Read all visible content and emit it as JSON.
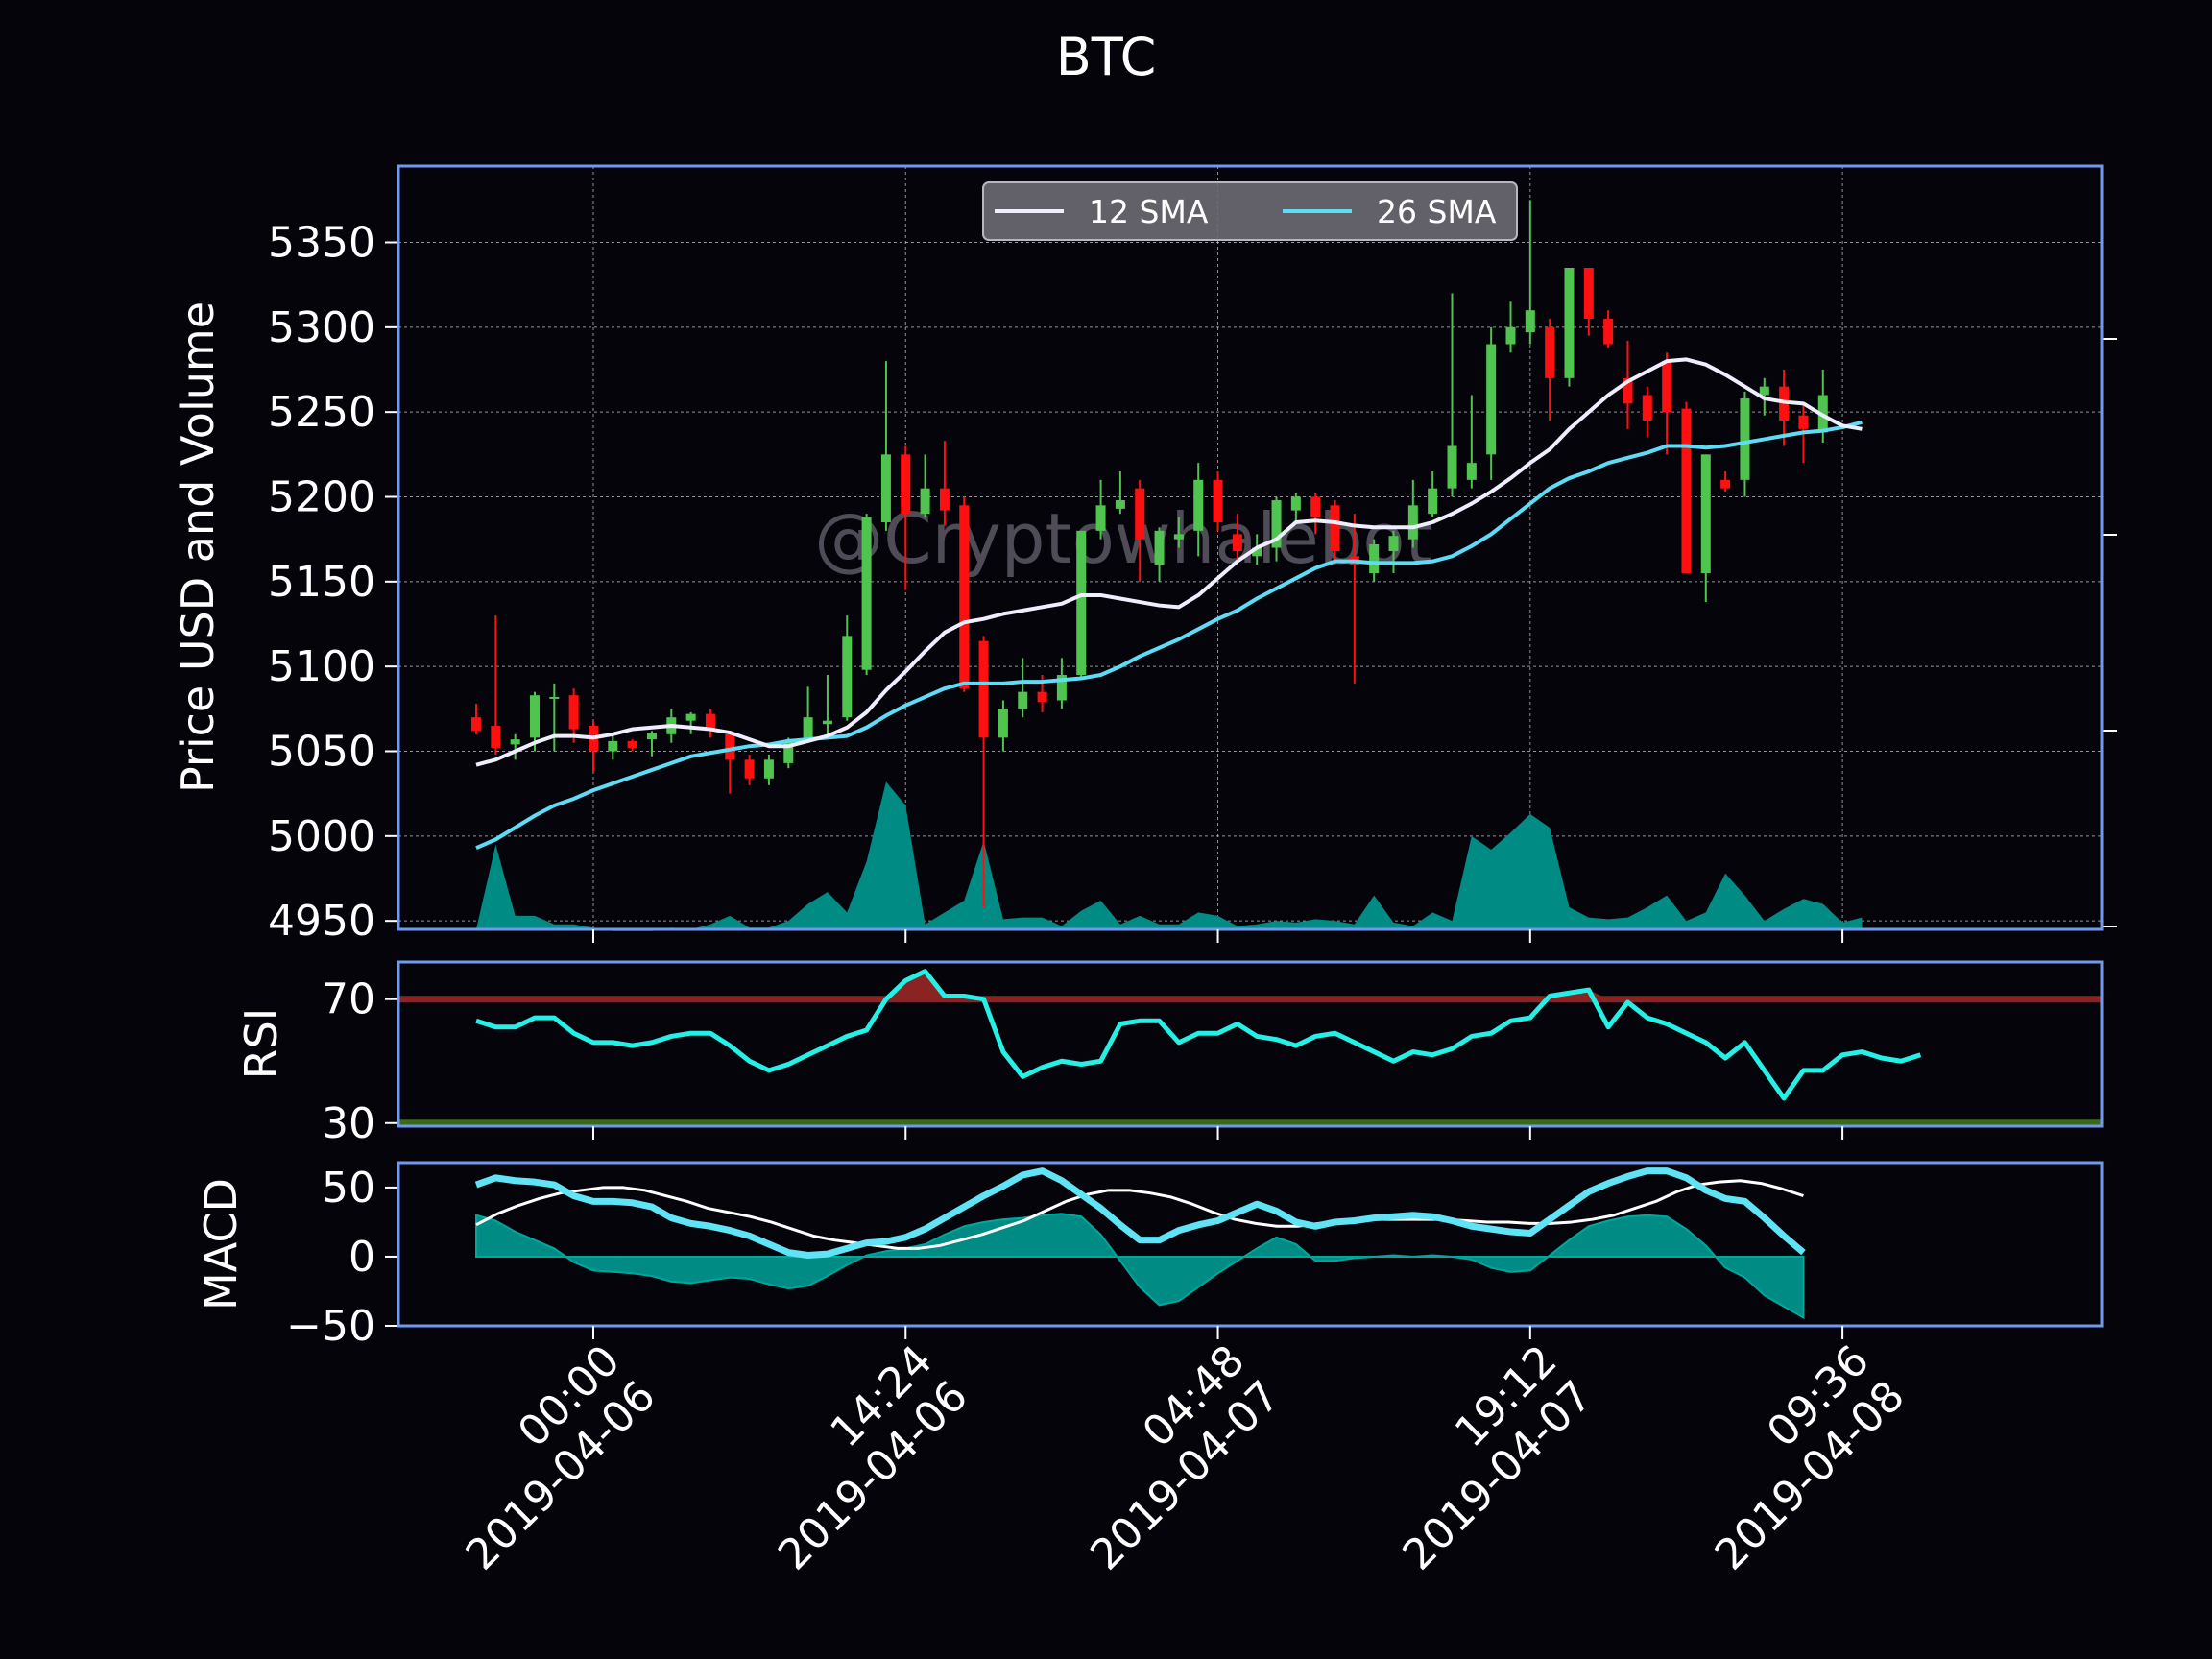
{
  "chart_data": {
    "type": "candlestick",
    "title": "BTC",
    "watermark": "@Cryptowhalebot",
    "x_tick_labels": [
      {
        "x": 6,
        "time": "00:00",
        "date": "2019-04-06"
      },
      {
        "x": 22,
        "time": "14:24",
        "date": "2019-04-06"
      },
      {
        "x": 38,
        "time": "04:48",
        "date": "2019-04-07"
      },
      {
        "x": 54,
        "time": "19:12",
        "date": "2019-04-07"
      },
      {
        "x": 70,
        "time": "09:36",
        "date": "2019-04-08"
      }
    ],
    "colors": {
      "background": "#05040b",
      "frame": "#6f9af0",
      "up": "#4fc44f",
      "down": "#ff1010",
      "sma12": "#eeeeff",
      "sma26": "#5fdcf5",
      "volume": "#008b84",
      "rsi_line": "#25f0e6",
      "rsi_over": "#8c2323",
      "rsi_under": "#3a6a16",
      "macd_line": "#5fe3f5",
      "signal_line": "#ffffff",
      "hist": "#008b84"
    },
    "price_panel": {
      "ylabel": "Price USD and Volume",
      "ylim": [
        4945,
        5395
      ],
      "yticks": [
        4950,
        5000,
        5050,
        5100,
        5150,
        5200,
        5250,
        5300,
        5350
      ],
      "legend": [
        {
          "label": "12 SMA",
          "color": "#eeeeff"
        },
        {
          "label": "26 SMA",
          "color": "#5fdcf5"
        }
      ],
      "candles": [
        [
          5070,
          5078,
          5060,
          5062
        ],
        [
          5065,
          5130,
          5048,
          5052
        ],
        [
          5054,
          5060,
          5045,
          5057
        ],
        [
          5058,
          5085,
          5050,
          5083
        ],
        [
          5082,
          5090,
          5050,
          5082
        ],
        [
          5083,
          5087,
          5055,
          5063
        ],
        [
          5065,
          5068,
          5038,
          5050
        ],
        [
          5050,
          5060,
          5045,
          5056
        ],
        [
          5056,
          5057,
          5050,
          5052
        ],
        [
          5057,
          5062,
          5047,
          5061
        ],
        [
          5060,
          5075,
          5055,
          5070
        ],
        [
          5068,
          5073,
          5060,
          5072
        ],
        [
          5072,
          5075,
          5058,
          5062
        ],
        [
          5060,
          5062,
          5025,
          5045
        ],
        [
          5045,
          5048,
          5030,
          5034
        ],
        [
          5034,
          5048,
          5030,
          5045
        ],
        [
          5043,
          5058,
          5040,
          5056
        ],
        [
          5057,
          5088,
          5055,
          5070
        ],
        [
          5066,
          5095,
          5060,
          5068
        ],
        [
          5070,
          5130,
          5068,
          5118
        ],
        [
          5098,
          5190,
          5095,
          5188
        ],
        [
          5185,
          5280,
          5180,
          5225
        ],
        [
          5225,
          5230,
          5145,
          5190
        ],
        [
          5190,
          5225,
          5188,
          5205
        ],
        [
          5205,
          5233,
          5183,
          5192
        ],
        [
          5195,
          5200,
          5085,
          5087
        ],
        [
          5115,
          5118,
          4958,
          5058
        ],
        [
          5058,
          5080,
          5050,
          5075
        ],
        [
          5075,
          5105,
          5070,
          5085
        ],
        [
          5085,
          5095,
          5073,
          5079
        ],
        [
          5080,
          5105,
          5075,
          5095
        ],
        [
          5095,
          5180,
          5093,
          5180
        ],
        [
          5180,
          5210,
          5175,
          5195
        ],
        [
          5193,
          5215,
          5190,
          5198
        ],
        [
          5205,
          5210,
          5150,
          5175
        ],
        [
          5160,
          5182,
          5150,
          5180
        ],
        [
          5175,
          5188,
          5170,
          5178
        ],
        [
          5180,
          5220,
          5165,
          5210
        ],
        [
          5210,
          5215,
          5180,
          5185
        ],
        [
          5178,
          5190,
          5162,
          5168
        ],
        [
          5165,
          5178,
          5160,
          5170
        ],
        [
          5170,
          5200,
          5162,
          5198
        ],
        [
          5192,
          5202,
          5185,
          5200
        ],
        [
          5200,
          5202,
          5178,
          5188
        ],
        [
          5195,
          5198,
          5160,
          5168
        ],
        [
          5165,
          5190,
          5090,
          5160
        ],
        [
          5155,
          5175,
          5150,
          5172
        ],
        [
          5168,
          5180,
          5155,
          5177
        ],
        [
          5175,
          5210,
          5170,
          5195
        ],
        [
          5190,
          5215,
          5188,
          5205
        ],
        [
          5205,
          5320,
          5200,
          5230
        ],
        [
          5210,
          5260,
          5205,
          5220
        ],
        [
          5225,
          5300,
          5210,
          5290
        ],
        [
          5290,
          5315,
          5285,
          5300
        ],
        [
          5297,
          5375,
          5290,
          5310
        ],
        [
          5300,
          5305,
          5245,
          5270
        ],
        [
          5270,
          5335,
          5265,
          5335
        ],
        [
          5335,
          5335,
          5295,
          5305
        ],
        [
          5305,
          5310,
          5288,
          5290
        ],
        [
          5270,
          5292,
          5240,
          5255
        ],
        [
          5260,
          5265,
          5235,
          5245
        ],
        [
          5280,
          5285,
          5225,
          5250
        ],
        [
          5252,
          5256,
          5155,
          5155
        ],
        [
          5155,
          5225,
          5138,
          5225
        ],
        [
          5210,
          5215,
          5203,
          5205
        ],
        [
          5210,
          5262,
          5200,
          5258
        ],
        [
          5260,
          5270,
          5248,
          5265
        ],
        [
          5265,
          5275,
          5230,
          5245
        ],
        [
          5248,
          5255,
          5220,
          5240
        ],
        [
          5238,
          5275,
          5232,
          5260
        ]
      ],
      "sma12": [
        5042,
        5045,
        5050,
        5055,
        5059,
        5059,
        5058,
        5060,
        5063,
        5064,
        5065,
        5064,
        5063,
        5061,
        5057,
        5053,
        5053,
        5056,
        5059,
        5064,
        5073,
        5086,
        5097,
        5109,
        5120,
        5126,
        5128,
        5131,
        5133,
        5135,
        5137,
        5142,
        5142,
        5140,
        5138,
        5136,
        5135,
        5142,
        5152,
        5162,
        5170,
        5175,
        5185,
        5186,
        5185,
        5183,
        5182,
        5182,
        5182,
        5185,
        5190,
        5196,
        5203,
        5211,
        5220,
        5228,
        5240,
        5250,
        5260,
        5268,
        5274,
        5280,
        5281,
        5278,
        5272,
        5265,
        5258,
        5256,
        5255,
        5248,
        5242,
        5240
      ],
      "sma26": [
        4993,
        4998,
        5005,
        5012,
        5018,
        5022,
        5027,
        5031,
        5035,
        5039,
        5043,
        5047,
        5049,
        5051,
        5053,
        5054,
        5056,
        5057,
        5058,
        5059,
        5064,
        5071,
        5077,
        5082,
        5087,
        5090,
        5090,
        5090,
        5091,
        5091,
        5092,
        5093,
        5095,
        5100,
        5106,
        5111,
        5116,
        5122,
        5128,
        5133,
        5140,
        5146,
        5152,
        5158,
        5162,
        5162,
        5161,
        5161,
        5161,
        5162,
        5165,
        5171,
        5178,
        5187,
        5196,
        5205,
        5211,
        5215,
        5220,
        5223,
        5226,
        5230,
        5230,
        5229,
        5230,
        5232,
        5234,
        5236,
        5238,
        5239,
        5241,
        5244
      ],
      "volume_ylim_top": 5395,
      "volume": [
        4945,
        4995,
        4953,
        4953,
        4948,
        4948,
        4946,
        4944,
        4944,
        4944,
        4946,
        4945,
        4948,
        4953,
        4946,
        4946,
        4950,
        4960,
        4967,
        4955,
        4985,
        5032,
        5018,
        4948,
        4955,
        4962,
        4997,
        4951,
        4952,
        4952,
        4947,
        4956,
        4962,
        4948,
        4953,
        4948,
        4948,
        4955,
        4953,
        4947,
        4948,
        4950,
        4949,
        4951,
        4950,
        4948,
        4965,
        4949,
        4947,
        4955,
        4950,
        5000,
        4992,
        5002,
        5013,
        5005,
        4958,
        4952,
        4951,
        4952,
        4958,
        4965,
        4950,
        4955,
        4978,
        4965,
        4950,
        4957,
        4963,
        4960,
        4949,
        4952
      ]
    },
    "rsi_panel": {
      "ylabel": "RSI",
      "ylim": [
        29,
        82
      ],
      "yticks": [
        30,
        70
      ],
      "overbought": 70,
      "oversold": 30,
      "rsi": [
        63,
        61,
        61,
        64,
        64,
        59,
        56,
        56,
        55,
        56,
        58,
        59,
        59,
        55,
        50,
        47,
        49,
        52,
        55,
        58,
        60,
        70,
        76,
        79,
        71,
        71,
        70,
        53,
        45,
        48,
        50,
        49,
        50,
        62,
        63,
        63,
        56,
        59,
        59,
        62,
        58,
        57,
        55,
        58,
        59,
        56,
        53,
        50,
        53,
        52,
        54,
        58,
        59,
        63,
        64,
        71,
        72,
        73,
        61,
        69,
        64,
        62,
        59,
        56,
        51,
        56,
        47,
        38,
        47,
        47,
        52,
        53,
        51,
        50,
        52
      ]
    },
    "macd_panel": {
      "ylabel": "MACD",
      "ylim": [
        -50,
        68
      ],
      "yticks": [
        -50,
        0,
        50
      ],
      "macd": [
        52,
        57,
        55,
        54,
        52,
        44,
        40,
        40,
        39,
        36,
        28,
        24,
        22,
        19,
        15,
        9,
        3,
        1,
        2,
        6,
        10,
        11,
        14,
        20,
        28,
        36,
        44,
        51,
        59,
        62,
        55,
        45,
        35,
        23,
        12,
        12,
        19,
        23,
        26,
        32,
        38,
        33,
        25,
        22,
        25,
        26,
        28,
        29,
        30,
        29,
        26,
        22,
        20,
        18,
        17,
        27,
        37,
        47,
        53,
        58,
        62,
        62,
        57,
        48,
        42,
        40,
        28,
        15,
        3
      ],
      "signal": [
        23,
        31,
        37,
        42,
        46,
        48,
        50,
        50,
        48,
        44,
        40,
        35,
        32,
        29,
        25,
        20,
        15,
        12,
        10,
        8,
        6,
        6,
        8,
        12,
        16,
        21,
        26,
        33,
        40,
        45,
        48,
        48,
        46,
        43,
        38,
        32,
        27,
        24,
        22,
        22,
        24,
        26,
        27,
        27,
        27,
        27,
        27,
        26,
        25,
        25,
        24,
        24,
        25,
        27,
        30,
        35,
        40,
        47,
        52,
        54,
        55,
        53,
        49,
        44
      ],
      "hist": [
        30,
        26,
        18,
        12,
        6,
        -4,
        -10,
        -11,
        -12,
        -14,
        -18,
        -19,
        -17,
        -15,
        -16,
        -20,
        -23,
        -21,
        -14,
        -6,
        1,
        4,
        6,
        9,
        16,
        22,
        25,
        27,
        28,
        30,
        31,
        29,
        16,
        -3,
        -22,
        -35,
        -32,
        -22,
        -12,
        -3,
        6,
        14,
        9,
        -3,
        -3,
        -1,
        0,
        1,
        0,
        1,
        0,
        -2,
        -8,
        -11,
        -10,
        1,
        12,
        22,
        26,
        29,
        30,
        29,
        20,
        8,
        -8,
        -15,
        -28,
        -36,
        -44
      ]
    }
  }
}
